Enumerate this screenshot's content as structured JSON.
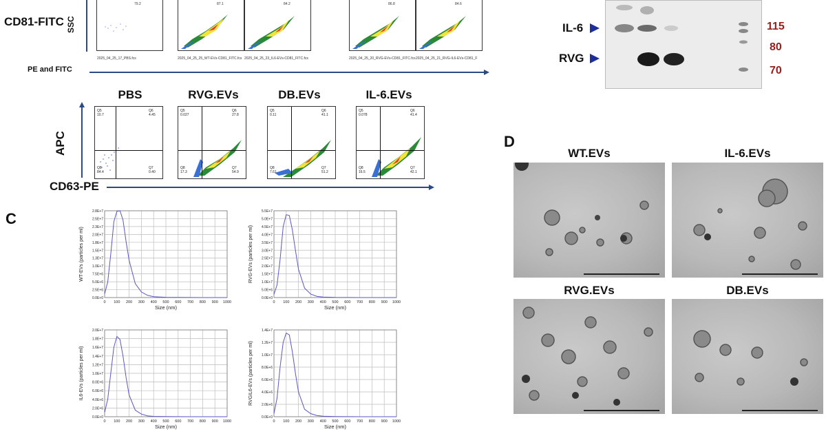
{
  "panel_b": {
    "top_row": {
      "label": "CD81-FITC",
      "y_axis": "SSC",
      "x_axis": "PE and  FITC",
      "files": [
        "2025_04_25_17_PBS.fcs",
        "2025_04_25_25_WT-EVs-CD81_FITC.fcs",
        "2025_04_25_23_IL6-EVs-CD81_FITC.fcs",
        "2025_04_25_20_RVG-EVs-CD81_FITC.fcs",
        "2025_04_25_21_RVG-IL6-EVs-CD81_F"
      ],
      "gate_values": [
        "79.2",
        "87.1",
        "84.2",
        "86.8",
        "84.6"
      ]
    },
    "bottom_row": {
      "titles": [
        "PBS",
        "RVG.EVs",
        "DB.EVs",
        "IL-6.EVs"
      ],
      "y_axis": "APC",
      "x_axis": "CD63-PE",
      "quadrants": [
        {
          "q5": "10.7",
          "q6": "4.45",
          "q8": "84.4",
          "q7": "0.40"
        },
        {
          "q5": "0.027",
          "q6": "27.8",
          "q8": "17.3",
          "q7": "54.9"
        },
        {
          "q5": "0.11",
          "q6": "41.1",
          "q8": "7.61",
          "q7": "51.2"
        },
        {
          "q5": "0.078",
          "q6": "41.4",
          "q8": "16.5",
          "q7": "42.1"
        }
      ],
      "quadrant_names": [
        "Q5",
        "Q6",
        "Q8",
        "Q7"
      ]
    }
  },
  "panel_wb": {
    "labels": [
      "IL-6",
      "RVG"
    ],
    "kda": [
      "115",
      "80",
      "70"
    ]
  },
  "panel_c": {
    "letter": "C",
    "chart_data": [
      {
        "type": "line",
        "ylabel": "WT-EVs (particles per ml)",
        "xlabel": "Size (nm)",
        "x": [
          0,
          25,
          50,
          75,
          100,
          125,
          150,
          175,
          200,
          250,
          300,
          350,
          400,
          500,
          600,
          700,
          800,
          900,
          1000
        ],
        "y": [
          1200000.0,
          5000000.0,
          14000000.0,
          24500000.0,
          27800000.0,
          28200000.0,
          25000000.0,
          18000000.0,
          12000000.0,
          4500000.0,
          1800000.0,
          700000.0,
          300000.0,
          100000.0,
          40000.0,
          20000.0,
          10000.0,
          5000.0,
          0
        ],
        "yticks": [
          "0.0E+0",
          "2.5E+6",
          "5.0E+6",
          "7.5E+6",
          "1.0E+7",
          "1.3E+7",
          "1.5E+7",
          "1.8E+7",
          "2.0E+7",
          "2.3E+7",
          "2.5E+7",
          "2.8E+7"
        ],
        "ymax": 28000000.0
      },
      {
        "type": "line",
        "ylabel": "RVG-EVs (particles per ml)",
        "xlabel": "Size (nm)",
        "x": [
          0,
          25,
          50,
          75,
          100,
          125,
          150,
          175,
          200,
          250,
          300,
          350,
          400,
          500,
          600,
          700,
          800,
          900,
          1000
        ],
        "y": [
          2000000.0,
          8000000.0,
          24000000.0,
          45000000.0,
          52500000.0,
          52000000.0,
          43000000.0,
          30000000.0,
          18000000.0,
          6000000.0,
          2200000.0,
          800000.0,
          300000.0,
          100000.0,
          40000.0,
          20000.0,
          10000.0,
          5000.0,
          0
        ],
        "yticks": [
          "0.0E+0",
          "5.0E+6",
          "1.0E+7",
          "1.5E+7",
          "2.0E+7",
          "2.5E+7",
          "3.0E+7",
          "3.5E+7",
          "4.0E+7",
          "4.5E+7",
          "5.0E+7",
          "5.5E+7"
        ],
        "ymax": 55000000.0
      },
      {
        "type": "line",
        "ylabel": "IL6-EVs (particles per ml)",
        "xlabel": "Size (nm)",
        "x": [
          0,
          25,
          50,
          75,
          100,
          125,
          150,
          175,
          200,
          250,
          300,
          350,
          400,
          500,
          600,
          700,
          800,
          900,
          1000
        ],
        "y": [
          1000000.0,
          4000000.0,
          10000000.0,
          16000000.0,
          18500000.0,
          17800000.0,
          14000000.0,
          9000000.0,
          5000000.0,
          1500000.0,
          600000.0,
          200000.0,
          80000.0,
          30000.0,
          10000.0,
          5000.0,
          2000.0,
          1000.0,
          0
        ],
        "yticks": [
          "0.0E+0",
          "2.0E+6",
          "4.0E+6",
          "6.0E+6",
          "8.0E+6",
          "1.0E+7",
          "1.2E+7",
          "1.4E+7",
          "1.6E+7",
          "1.8E+7",
          "2.0E+7"
        ],
        "ymax": 20000000.0
      },
      {
        "type": "line",
        "ylabel": "RVGIL6-EVs (particles per ml)",
        "xlabel": "Size (nm)",
        "x": [
          0,
          25,
          50,
          75,
          100,
          125,
          150,
          175,
          200,
          250,
          300,
          350,
          400,
          500,
          600,
          700,
          800,
          900,
          1000
        ],
        "y": [
          500000.0,
          3000000.0,
          8000000.0,
          12000000.0,
          13500000.0,
          13200000.0,
          10500000.0,
          7000000.0,
          4000000.0,
          1200000.0,
          500000.0,
          200000.0,
          80000.0,
          30000.0,
          10000.0,
          5000.0,
          2000.0,
          1000.0,
          0
        ],
        "yticks": [
          "0.0E+0",
          "2.0E+6",
          "4.0E+6",
          "6.0E+6",
          "8.0E+6",
          "1.0E+7",
          "1.2E+7",
          "1.4E+7"
        ],
        "ymax": 14000000.0
      }
    ],
    "xticks": [
      "0",
      "100",
      "200",
      "300",
      "400",
      "500",
      "600",
      "700",
      "800",
      "900",
      "1000"
    ]
  },
  "panel_d": {
    "letter": "D",
    "titles": [
      "WT.EVs",
      "IL-6.EVs",
      "RVG.EVs",
      "DB.EVs"
    ]
  }
}
